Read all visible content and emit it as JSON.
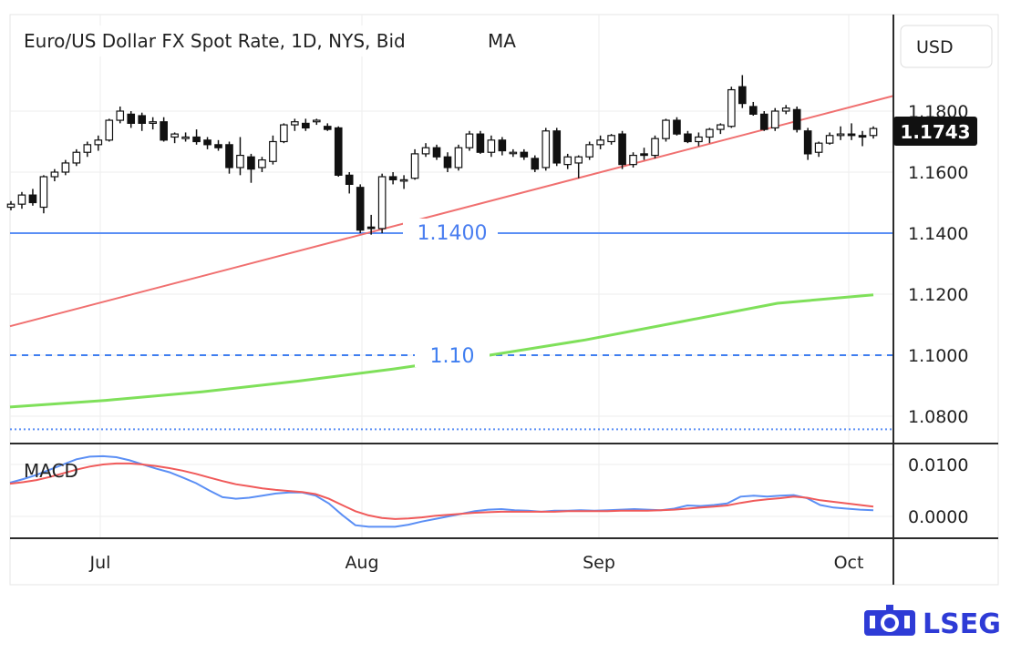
{
  "header": {
    "title": "Euro/US Dollar FX Spot Rate, 1D, NYS, Bid",
    "indicator": "MA"
  },
  "currency_button": "USD",
  "last_price": "1.1743",
  "brand": {
    "name": "LSEG",
    "color": "#2e3bd6"
  },
  "chart_data": [
    {
      "type": "candlestick",
      "title": "Euro/US Dollar FX Spot Rate, 1D, NYS, Bid",
      "ylim": [
        1.0775,
        1.1975
      ],
      "yticks": [
        "1.1800",
        "1.1600",
        "1.1400",
        "1.1200",
        "1.1000",
        "1.0800"
      ],
      "xticks": [
        "Jul",
        "Aug",
        "Sep",
        "Oct"
      ],
      "current_price": 1.1743,
      "grid": true,
      "candles": [
        [
          1.1485,
          1.1505,
          1.1475,
          1.1495
        ],
        [
          1.1495,
          1.1535,
          1.148,
          1.1525
        ],
        [
          1.1525,
          1.1545,
          1.149,
          1.15
        ],
        [
          1.1485,
          1.159,
          1.1465,
          1.1585
        ],
        [
          1.1585,
          1.161,
          1.157,
          1.16
        ],
        [
          1.16,
          1.164,
          1.159,
          1.163
        ],
        [
          1.163,
          1.1675,
          1.162,
          1.1665
        ],
        [
          1.1665,
          1.17,
          1.165,
          1.169
        ],
        [
          1.169,
          1.172,
          1.167,
          1.1705
        ],
        [
          1.1705,
          1.1775,
          1.17,
          1.177
        ],
        [
          1.177,
          1.1815,
          1.176,
          1.18
        ],
        [
          1.179,
          1.18,
          1.1745,
          1.176
        ],
        [
          1.1785,
          1.1795,
          1.1735,
          1.176
        ],
        [
          1.176,
          1.178,
          1.174,
          1.1765
        ],
        [
          1.1765,
          1.178,
          1.17,
          1.1705
        ],
        [
          1.1715,
          1.173,
          1.1695,
          1.1725
        ],
        [
          1.171,
          1.173,
          1.17,
          1.1715
        ],
        [
          1.1715,
          1.174,
          1.169,
          1.17
        ],
        [
          1.1705,
          1.1715,
          1.1675,
          1.169
        ],
        [
          1.169,
          1.1705,
          1.167,
          1.168
        ],
        [
          1.169,
          1.17,
          1.1595,
          1.1615
        ],
        [
          1.1615,
          1.1715,
          1.159,
          1.1655
        ],
        [
          1.165,
          1.166,
          1.1565,
          1.161
        ],
        [
          1.1615,
          1.165,
          1.16,
          1.164
        ],
        [
          1.1635,
          1.172,
          1.1625,
          1.17
        ],
        [
          1.17,
          1.176,
          1.1695,
          1.1755
        ],
        [
          1.1755,
          1.1775,
          1.1735,
          1.1765
        ],
        [
          1.176,
          1.1775,
          1.1735,
          1.1745
        ],
        [
          1.1765,
          1.1775,
          1.1755,
          1.177
        ],
        [
          1.175,
          1.176,
          1.1735,
          1.174
        ],
        [
          1.1745,
          1.175,
          1.1585,
          1.159
        ],
        [
          1.159,
          1.16,
          1.153,
          1.156
        ],
        [
          1.155,
          1.156,
          1.14,
          1.141
        ],
        [
          1.142,
          1.146,
          1.1395,
          1.1415
        ],
        [
          1.1415,
          1.1595,
          1.14,
          1.1585
        ],
        [
          1.1585,
          1.16,
          1.156,
          1.1575
        ],
        [
          1.1575,
          1.159,
          1.1545,
          1.1575
        ],
        [
          1.158,
          1.1675,
          1.1575,
          1.166
        ],
        [
          1.166,
          1.1695,
          1.165,
          1.168
        ],
        [
          1.168,
          1.169,
          1.164,
          1.165
        ],
        [
          1.165,
          1.1665,
          1.16,
          1.1615
        ],
        [
          1.1615,
          1.169,
          1.1605,
          1.168
        ],
        [
          1.168,
          1.1735,
          1.167,
          1.1725
        ],
        [
          1.1725,
          1.1735,
          1.166,
          1.1665
        ],
        [
          1.1665,
          1.172,
          1.165,
          1.1705
        ],
        [
          1.1705,
          1.1715,
          1.1655,
          1.167
        ],
        [
          1.1665,
          1.1675,
          1.165,
          1.1665
        ],
        [
          1.1665,
          1.1675,
          1.164,
          1.165
        ],
        [
          1.1645,
          1.1655,
          1.16,
          1.161
        ],
        [
          1.1615,
          1.1745,
          1.1605,
          1.1735
        ],
        [
          1.1735,
          1.1745,
          1.162,
          1.163
        ],
        [
          1.1625,
          1.166,
          1.161,
          1.165
        ],
        [
          1.163,
          1.1655,
          1.158,
          1.165
        ],
        [
          1.165,
          1.17,
          1.164,
          1.169
        ],
        [
          1.169,
          1.172,
          1.1675,
          1.1705
        ],
        [
          1.17,
          1.1725,
          1.169,
          1.172
        ],
        [
          1.1725,
          1.1735,
          1.161,
          1.1625
        ],
        [
          1.1625,
          1.1665,
          1.1615,
          1.1655
        ],
        [
          1.166,
          1.168,
          1.164,
          1.1655
        ],
        [
          1.1655,
          1.172,
          1.1645,
          1.171
        ],
        [
          1.171,
          1.1775,
          1.17,
          1.177
        ],
        [
          1.177,
          1.178,
          1.172,
          1.1725
        ],
        [
          1.1725,
          1.1735,
          1.1695,
          1.17
        ],
        [
          1.17,
          1.173,
          1.1685,
          1.1715
        ],
        [
          1.1715,
          1.1745,
          1.1695,
          1.174
        ],
        [
          1.174,
          1.176,
          1.1725,
          1.1755
        ],
        [
          1.175,
          1.188,
          1.1745,
          1.187
        ],
        [
          1.188,
          1.1918,
          1.181,
          1.1825
        ],
        [
          1.1815,
          1.183,
          1.1785,
          1.179
        ],
        [
          1.179,
          1.18,
          1.1735,
          1.174
        ],
        [
          1.1745,
          1.181,
          1.1735,
          1.18
        ],
        [
          1.18,
          1.182,
          1.179,
          1.181
        ],
        [
          1.1805,
          1.1815,
          1.173,
          1.174
        ],
        [
          1.1735,
          1.1745,
          1.164,
          1.166
        ],
        [
          1.1665,
          1.17,
          1.165,
          1.1695
        ],
        [
          1.1695,
          1.173,
          1.169,
          1.172
        ],
        [
          1.172,
          1.175,
          1.1705,
          1.1725
        ],
        [
          1.1725,
          1.176,
          1.1705,
          1.172
        ],
        [
          1.172,
          1.1735,
          1.1685,
          1.1715
        ],
        [
          1.172,
          1.175,
          1.171,
          1.1743
        ]
      ],
      "horizontal_lines": [
        {
          "value": 1.14,
          "label": "1.1400",
          "style": "solid",
          "color": "#5b8ff5"
        },
        {
          "value": 1.1,
          "label": "1.10",
          "style": "dashed",
          "color": "#3f7ef0"
        },
        {
          "value": 1.0775,
          "label": "",
          "style": "dotted",
          "color": "#5b8ff5"
        }
      ],
      "trendline": {
        "from": 1.1095,
        "to": 1.185,
        "color": "#f07070"
      },
      "moving_average": {
        "values": [
          1.083,
          1.0852,
          1.088,
          1.0915,
          1.0955,
          1.1,
          1.105,
          1.111,
          1.117,
          1.1198
        ],
        "color": "#7fe05a"
      }
    },
    {
      "type": "line",
      "title": "MACD",
      "ylim": [
        -0.0025,
        0.0135
      ],
      "yticks": [
        "0.0100",
        "0.0000"
      ],
      "series": [
        {
          "color": "#5b8ff5",
          "values": [
            0.0065,
            0.0072,
            0.008,
            0.009,
            0.01,
            0.011,
            0.0115,
            0.0116,
            0.0114,
            0.0108,
            0.01,
            0.0092,
            0.0085,
            0.0075,
            0.0064,
            0.005,
            0.0037,
            0.0034,
            0.0036,
            0.004,
            0.0044,
            0.0046,
            0.0046,
            0.004,
            0.0025,
            0.0003,
            -0.0017,
            -0.002,
            -0.002,
            -0.002,
            -0.0016,
            -0.001,
            -0.0005,
            0.0,
            0.0005,
            0.001,
            0.0013,
            0.0014,
            0.0012,
            0.0011,
            0.0009,
            0.0011,
            0.0011,
            0.0012,
            0.0011,
            0.0012,
            0.0013,
            0.0014,
            0.0013,
            0.0012,
            0.0015,
            0.0021,
            0.002,
            0.0022,
            0.0025,
            0.0038,
            0.004,
            0.0038,
            0.004,
            0.0041,
            0.0035,
            0.0022,
            0.0017,
            0.0015,
            0.0013,
            0.0012
          ]
        },
        {
          "color": "#f05a5a",
          "values": [
            0.0063,
            0.0066,
            0.007,
            0.0076,
            0.0083,
            0.009,
            0.0096,
            0.01,
            0.0102,
            0.0102,
            0.01,
            0.0097,
            0.0093,
            0.0088,
            0.0082,
            0.0075,
            0.0068,
            0.0062,
            0.0058,
            0.0054,
            0.0051,
            0.0049,
            0.0047,
            0.0043,
            0.0034,
            0.0022,
            0.001,
            0.0002,
            -0.0003,
            -0.0005,
            -0.0004,
            -0.0002,
            0.0001,
            0.0003,
            0.0005,
            0.0007,
            0.0008,
            0.0009,
            0.0009,
            0.0009,
            0.0009,
            0.0009,
            0.001,
            0.001,
            0.001,
            0.001,
            0.0011,
            0.0011,
            0.0011,
            0.0012,
            0.0013,
            0.0015,
            0.0017,
            0.0019,
            0.0021,
            0.0026,
            0.003,
            0.0033,
            0.0035,
            0.0038,
            0.0036,
            0.0031,
            0.0028,
            0.0025,
            0.0022,
            0.0019
          ]
        }
      ]
    }
  ]
}
